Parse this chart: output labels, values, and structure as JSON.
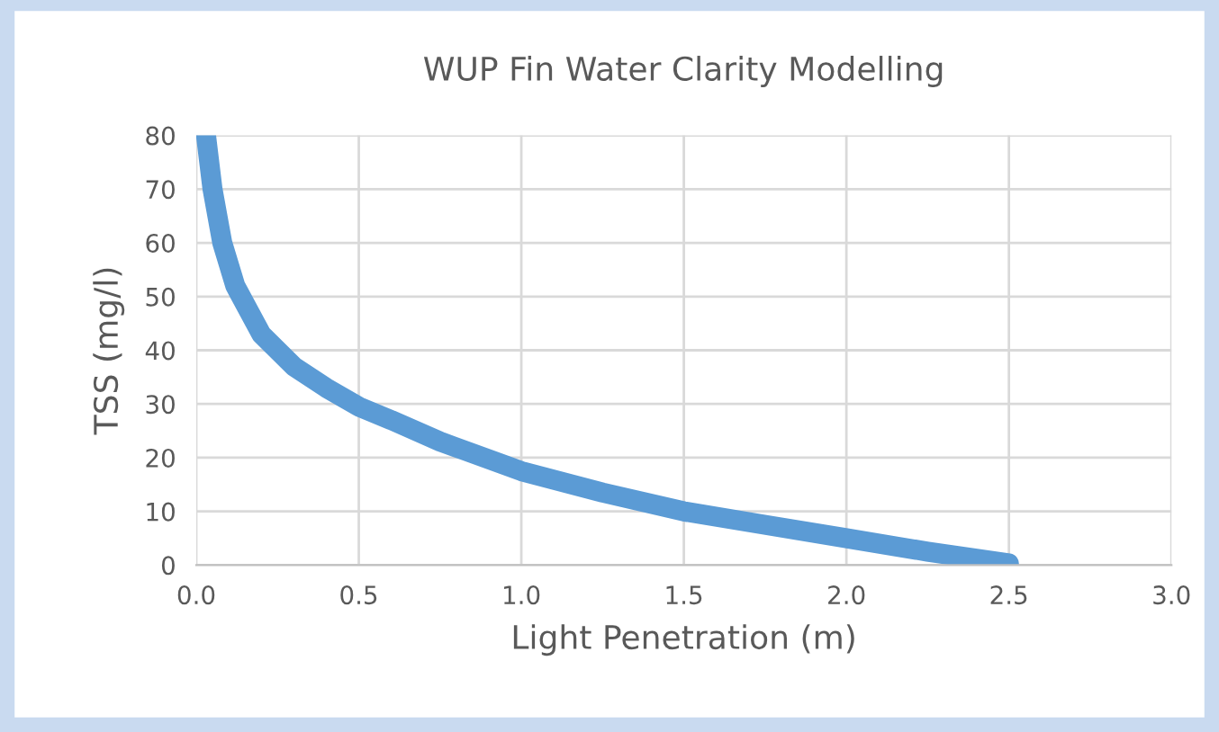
{
  "chart_data": {
    "type": "line",
    "title": "WUP Fin Water Clarity Modelling",
    "xlabel": "Light Penetration (m)",
    "ylabel": "TSS (mg/l)",
    "series": [
      {
        "color": "#5b9bd5",
        "x": [
          0.03,
          0.05,
          0.08,
          0.12,
          0.2,
          0.3,
          0.4,
          0.5,
          0.6,
          0.75,
          1.0,
          1.25,
          1.5,
          1.75,
          2.0,
          2.25,
          2.5
        ],
        "values": [
          80,
          70,
          60,
          52,
          43,
          37,
          33,
          29.5,
          27,
          23,
          17.5,
          13.5,
          10,
          7.5,
          5,
          2.5,
          0.3
        ]
      }
    ],
    "xlim": [
      0,
      3.0
    ],
    "xticks": [
      {
        "value": 0,
        "label": "0.0"
      },
      0.5,
      {
        "value": 1,
        "label": "1.0"
      },
      1.5,
      {
        "value": 2,
        "label": "2.0"
      },
      2.5,
      {
        "value": 3,
        "label": "3.0"
      }
    ],
    "ylim": [
      0,
      80
    ],
    "yticks": [
      0,
      10,
      20,
      30,
      40,
      50,
      60,
      70,
      80
    ],
    "grid": true,
    "marker": "none",
    "line_style": "solid"
  }
}
